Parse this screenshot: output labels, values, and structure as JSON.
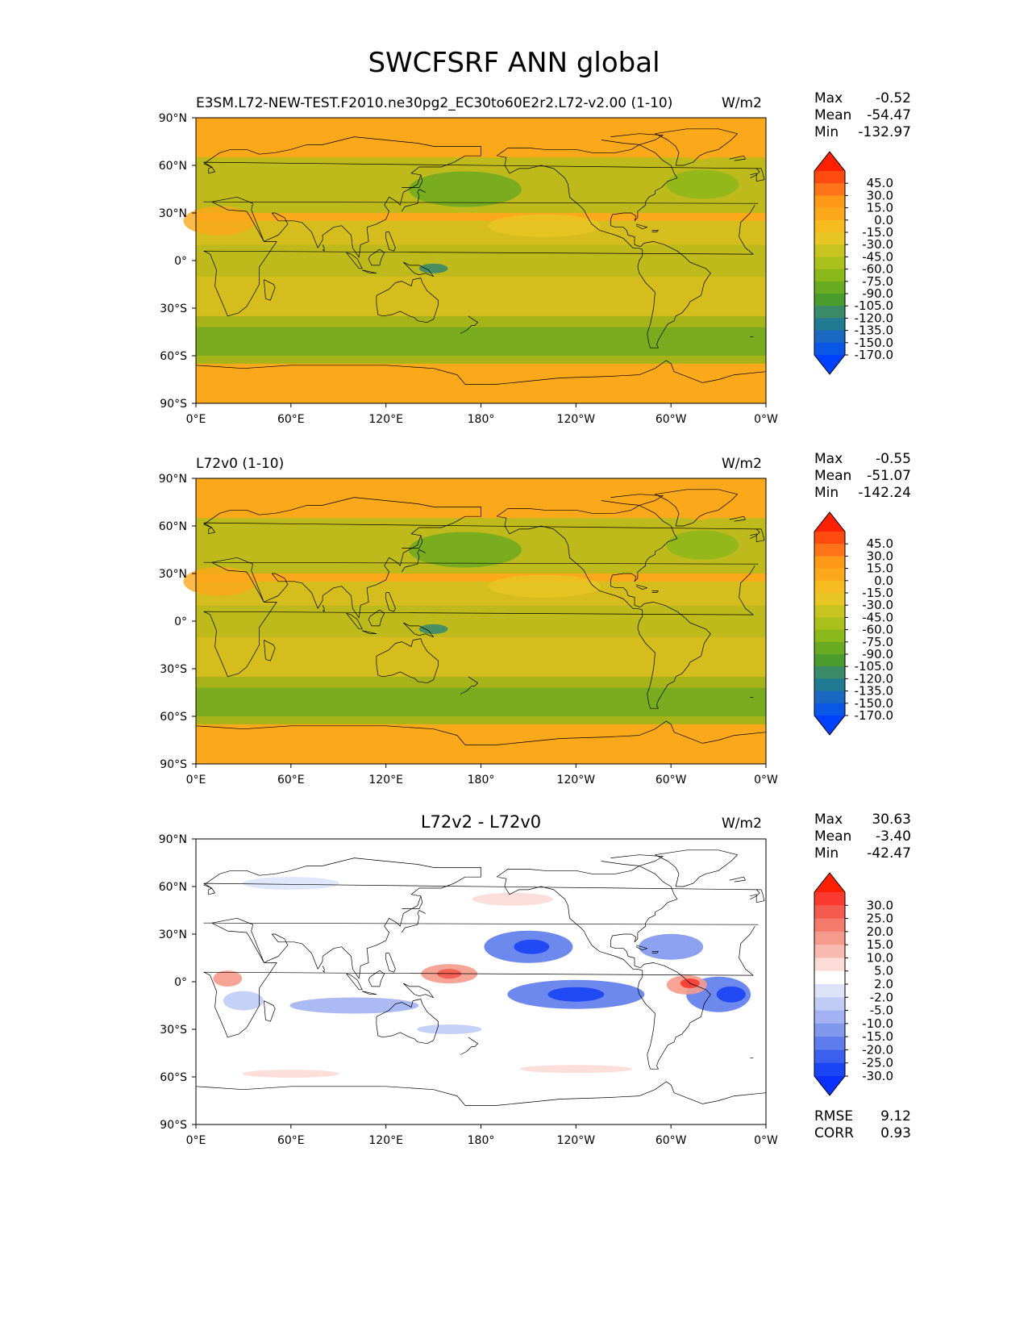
{
  "title": "SWCFSRF ANN global",
  "x_ticks": [
    "0°E",
    "60°E",
    "120°E",
    "180°",
    "120°W",
    "60°W",
    "0°W"
  ],
  "y_ticks": [
    "90°N",
    "60°N",
    "30°N",
    "0°",
    "30°S",
    "60°S",
    "90°S"
  ],
  "stat_labels": {
    "max": "Max",
    "mean": "Mean",
    "min": "Min",
    "rmse": "RMSE",
    "corr": "CORR"
  },
  "panels": [
    {
      "left_title": "E3SM.L72-NEW-TEST.F2010.ne30pg2_EC30to60E2r2.L72-v2.00 (1-10)",
      "center_title": "",
      "units": "W/m2",
      "max": "-0.52",
      "mean": "-54.47",
      "min": "-132.97",
      "levels": [
        "45.0",
        "30.0",
        "15.0",
        "0.0",
        "-15.0",
        "-30.0",
        "-45.0",
        "-60.0",
        "-75.0",
        "-90.0",
        "-105.0",
        "-120.0",
        "-135.0",
        "-150.0",
        "-170.0"
      ],
      "colors": [
        "#ff2000",
        "#ff4a10",
        "#ff7418",
        "#ff9a18",
        "#fca81b",
        "#f6bc1f",
        "#e8c624",
        "#c8c41f",
        "#aac01c",
        "#8ab81a",
        "#68aa20",
        "#4a9c2c",
        "#3a8a6a",
        "#1f7a92",
        "#1a68c2",
        "#0a56e6",
        "#0040ff"
      ]
    },
    {
      "left_title": "L72v0 (1-10)",
      "center_title": "",
      "units": "W/m2",
      "max": "-0.55",
      "mean": "-51.07",
      "min": "-142.24",
      "levels": [
        "45.0",
        "30.0",
        "15.0",
        "0.0",
        "-15.0",
        "-30.0",
        "-45.0",
        "-60.0",
        "-75.0",
        "-90.0",
        "-105.0",
        "-120.0",
        "-135.0",
        "-150.0",
        "-170.0"
      ],
      "colors": [
        "#ff2000",
        "#ff4a10",
        "#ff7418",
        "#ff9a18",
        "#fca81b",
        "#f6bc1f",
        "#e8c624",
        "#c8c41f",
        "#aac01c",
        "#8ab81a",
        "#68aa20",
        "#4a9c2c",
        "#3a8a6a",
        "#1f7a92",
        "#1a68c2",
        "#0a56e6",
        "#0040ff"
      ]
    },
    {
      "left_title": "",
      "center_title": "L72v2 - L72v0",
      "units": "W/m2",
      "max": "30.63",
      "mean": "-3.40",
      "min": "-42.47",
      "rmse": "9.12",
      "corr": "0.93",
      "levels": [
        "30.0",
        "25.0",
        "20.0",
        "15.0",
        "10.0",
        "5.0",
        "2.0",
        "-2.0",
        "-5.0",
        "-10.0",
        "-15.0",
        "-20.0",
        "-25.0",
        "-30.0"
      ],
      "colors": [
        "#ff2000",
        "#fa3a30",
        "#f55a4e",
        "#f47a6c",
        "#f69a8c",
        "#f8b9ae",
        "#fcdcd6",
        "#ffffff",
        "#dde4fa",
        "#c0ccf6",
        "#a2b2f2",
        "#8098ee",
        "#5e7cec",
        "#3c60ee",
        "#1a44f4",
        "#0a30ff"
      ]
    }
  ],
  "chart_data": [
    {
      "type": "heatmap",
      "title": "E3SM.L72-NEW-TEST.F2010.ne30pg2_EC30to60E2r2.L72-v2.00 (1-10)",
      "units": "W/m2",
      "xlim": [
        0,
        360
      ],
      "ylim": [
        -90,
        90
      ],
      "max": -0.52,
      "mean": -54.47,
      "min": -132.97
    },
    {
      "type": "heatmap",
      "title": "L72v0 (1-10)",
      "units": "W/m2",
      "xlim": [
        0,
        360
      ],
      "ylim": [
        -90,
        90
      ],
      "max": -0.55,
      "mean": -51.07,
      "min": -142.24
    },
    {
      "type": "heatmap",
      "title": "L72v2 - L72v0",
      "units": "W/m2",
      "xlim": [
        0,
        360
      ],
      "ylim": [
        -90,
        90
      ],
      "max": 30.63,
      "mean": -3.4,
      "min": -42.47,
      "rmse": 9.12,
      "corr": 0.93
    }
  ]
}
